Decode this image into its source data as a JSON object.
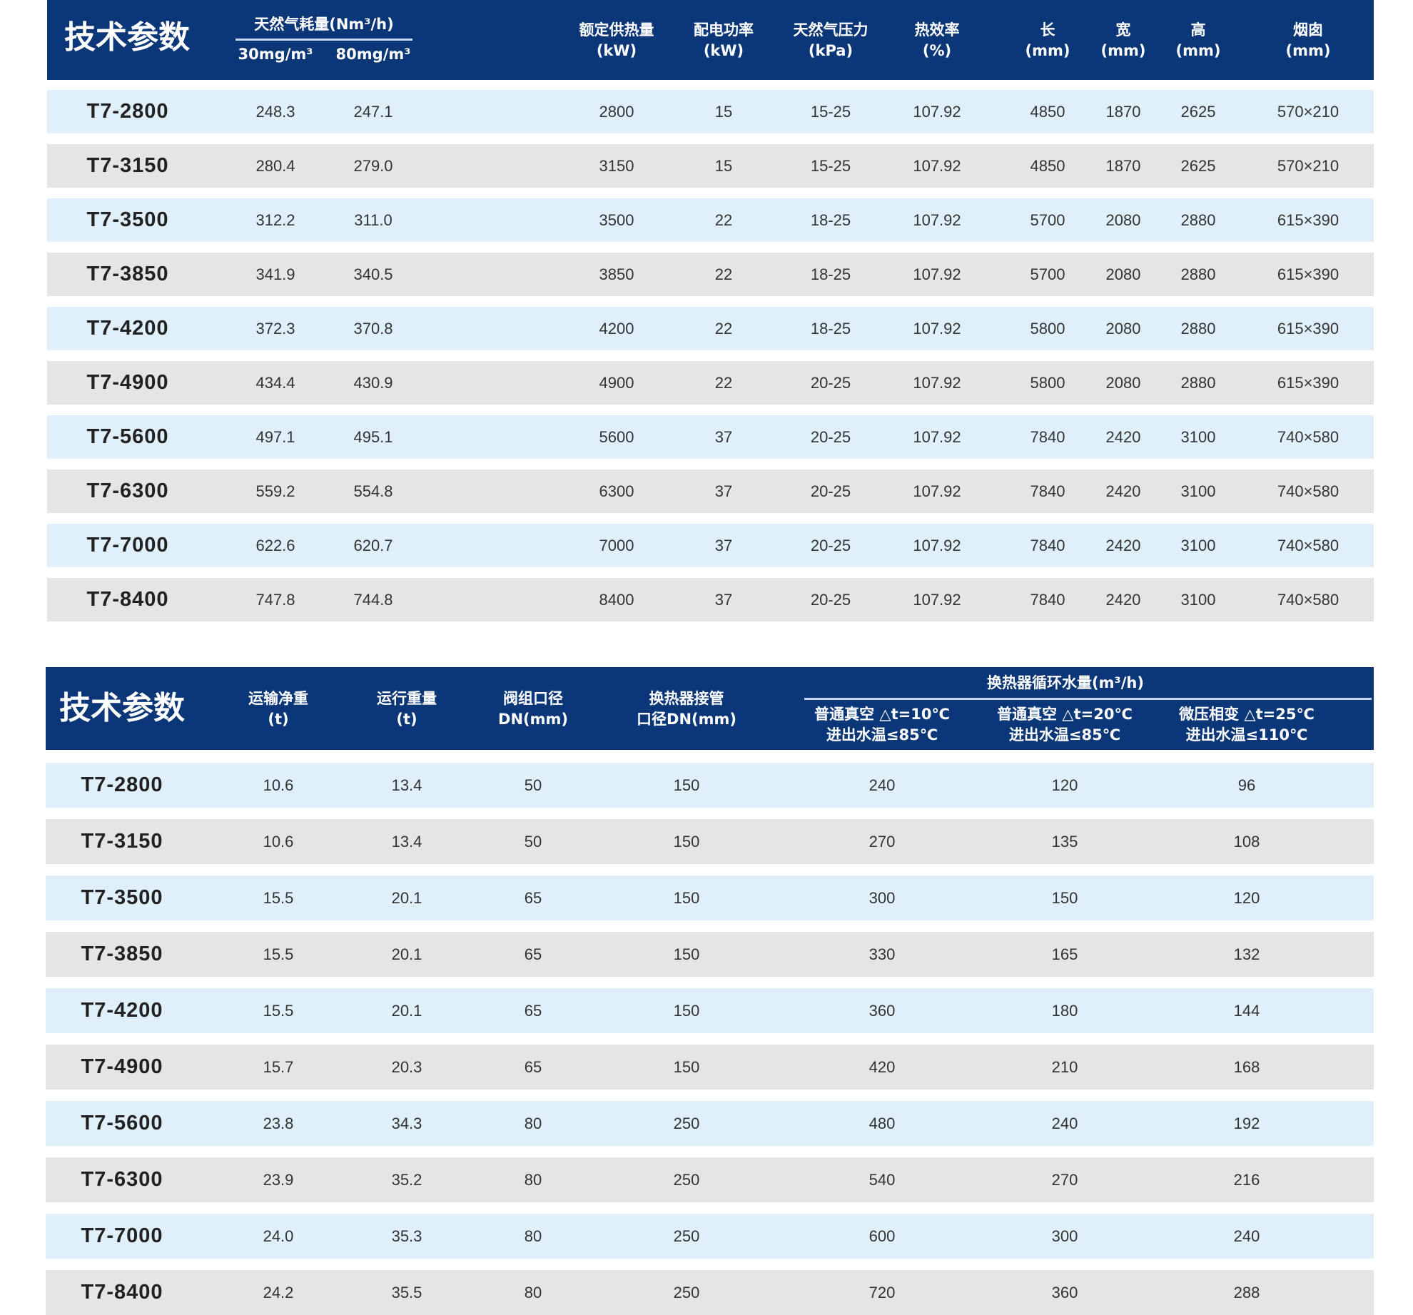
{
  "colors": {
    "header": "#0b3677",
    "row_blue": "#dff0fa",
    "row_gray": "#e5e5e5"
  },
  "table1": {
    "title": "技术参数",
    "group_header": "天然气耗量(Nm³/h)",
    "headers": [
      "30mg/m³",
      "80mg/m³",
      "额定供热量\n(kW)",
      "配电功率\n(kW)",
      "天然气压力\n(kPa)",
      "热效率\n(%)",
      "长\n(mm)",
      "宽\n(mm)",
      "高\n(mm)",
      "烟囱\n(mm)"
    ],
    "rows": [
      [
        "T7-2800",
        "248.3",
        "247.1",
        "2800",
        "15",
        "15-25",
        "107.92",
        "4850",
        "1870",
        "2625",
        "570×210"
      ],
      [
        "T7-3150",
        "280.4",
        "279.0",
        "3150",
        "15",
        "15-25",
        "107.92",
        "4850",
        "1870",
        "2625",
        "570×210"
      ],
      [
        "T7-3500",
        "312.2",
        "311.0",
        "3500",
        "22",
        "18-25",
        "107.92",
        "5700",
        "2080",
        "2880",
        "615×390"
      ],
      [
        "T7-3850",
        "341.9",
        "340.5",
        "3850",
        "22",
        "18-25",
        "107.92",
        "5700",
        "2080",
        "2880",
        "615×390"
      ],
      [
        "T7-4200",
        "372.3",
        "370.8",
        "4200",
        "22",
        "18-25",
        "107.92",
        "5800",
        "2080",
        "2880",
        "615×390"
      ],
      [
        "T7-4900",
        "434.4",
        "430.9",
        "4900",
        "22",
        "20-25",
        "107.92",
        "5800",
        "2080",
        "2880",
        "615×390"
      ],
      [
        "T7-5600",
        "497.1",
        "495.1",
        "5600",
        "37",
        "20-25",
        "107.92",
        "7840",
        "2420",
        "3100",
        "740×580"
      ],
      [
        "T7-6300",
        "559.2",
        "554.8",
        "6300",
        "37",
        "20-25",
        "107.92",
        "7840",
        "2420",
        "3100",
        "740×580"
      ],
      [
        "T7-7000",
        "622.6",
        "620.7",
        "7000",
        "37",
        "20-25",
        "107.92",
        "7840",
        "2420",
        "3100",
        "740×580"
      ],
      [
        "T7-8400",
        "747.8",
        "744.8",
        "8400",
        "37",
        "20-25",
        "107.92",
        "7840",
        "2420",
        "3100",
        "740×580"
      ]
    ]
  },
  "table2": {
    "title": "技术参数",
    "group_header": "换热器循环水量(m³/h)",
    "headers": [
      "运输净重\n(t)",
      "运行重量\n(t)",
      "阀组口径\nDN(mm)",
      "换热器接管\n口径DN(mm)",
      "普通真空 △t=10℃\n进出水温≤85℃",
      "普通真空 △t=20℃\n进出水温≤85℃",
      "微压相变 △t=25℃\n进出水温≤110℃"
    ],
    "rows": [
      [
        "T7-2800",
        "10.6",
        "13.4",
        "50",
        "150",
        "240",
        "120",
        "96"
      ],
      [
        "T7-3150",
        "10.6",
        "13.4",
        "50",
        "150",
        "270",
        "135",
        "108"
      ],
      [
        "T7-3500",
        "15.5",
        "20.1",
        "65",
        "150",
        "300",
        "150",
        "120"
      ],
      [
        "T7-3850",
        "15.5",
        "20.1",
        "65",
        "150",
        "330",
        "165",
        "132"
      ],
      [
        "T7-4200",
        "15.5",
        "20.1",
        "65",
        "150",
        "360",
        "180",
        "144"
      ],
      [
        "T7-4900",
        "15.7",
        "20.3",
        "65",
        "150",
        "420",
        "210",
        "168"
      ],
      [
        "T7-5600",
        "23.8",
        "34.3",
        "80",
        "250",
        "480",
        "240",
        "192"
      ],
      [
        "T7-6300",
        "23.9",
        "35.2",
        "80",
        "250",
        "540",
        "270",
        "216"
      ],
      [
        "T7-7000",
        "24.0",
        "35.3",
        "80",
        "250",
        "600",
        "300",
        "240"
      ],
      [
        "T7-8400",
        "24.2",
        "35.5",
        "80",
        "250",
        "720",
        "360",
        "288"
      ]
    ]
  }
}
